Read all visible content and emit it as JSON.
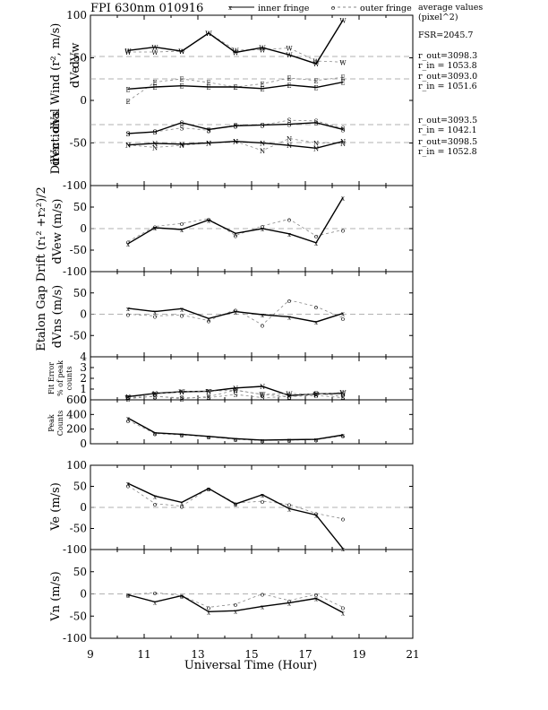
{
  "header": {
    "title": "FPI 630nm 010916",
    "legend_inner": "inner fringe",
    "legend_outer": "outer fringe",
    "legend_inner_marker": "x",
    "legend_outer_marker": "o"
  },
  "side_notes": {
    "average_title": "average values",
    "average_unit": "(pixel^2)",
    "fsr": "FSR=2045.7",
    "pairs": [
      {
        "out": "r_out=3098.3",
        "in": "r_in = 1053.8"
      },
      {
        "out": "r_out=3093.0",
        "in": "r_in = 1051.6"
      },
      {
        "out": "r_out=3093.5",
        "in": "r_in = 1042.1"
      },
      {
        "out": "r_out=3098.5",
        "in": "r_in = 1052.8"
      }
    ]
  },
  "axis_labels": {
    "directional_wind": "Directional Wind (r², m/s)",
    "dvw": "dVw",
    "dve": "dVe",
    "dvs": "dVs",
    "dvn": "dVn",
    "etalon": "Etalon Gap Drift (r₁² +r₂²)/2",
    "dvew": "dVew (m/s)",
    "dvns": "dVns (m/s)",
    "fit_error_1": "Fit Error",
    "fit_error_2": "% of peak",
    "fit_error_3": "counts",
    "peak_1": "Peak",
    "peak_2": "Counts",
    "ve": "Ve (m/s)",
    "vn": "Vn (m/s)",
    "x": "Universal Time (Hour)"
  },
  "chart_data": [
    {
      "type": "line",
      "panel": "directional_wind",
      "ylim": [
        -100,
        100
      ],
      "ytick_labels": [
        "100",
        "50",
        "0",
        "-50",
        "-100"
      ],
      "xlim": [
        9,
        21
      ],
      "xtick_labels": [
        "9",
        "11",
        "13",
        "15",
        "17",
        "19",
        "21"
      ],
      "x": [
        10.4,
        11.4,
        12.4,
        13.4,
        14.4,
        15.4,
        16.4,
        17.4,
        18.4
      ],
      "groups": [
        {
          "marker": "W",
          "inner": [
            15,
            23,
            13,
            58,
            10,
            22,
            4,
            -18,
            90
          ],
          "outer": [
            11,
            11,
            13,
            58,
            16,
            17,
            21,
            -11,
            -14
          ]
        },
        {
          "marker": "E",
          "inner": [
            -25,
            -20,
            -17,
            -20,
            -20,
            -24,
            -15,
            -21,
            -8
          ],
          "outer": [
            -55,
            -8,
            0,
            -9,
            -20,
            -12,
            2,
            -4,
            4
          ]
        },
        {
          "marker": "S",
          "inner": [
            -22,
            -18,
            5,
            -12,
            -3,
            -1,
            1,
            5,
            -12
          ],
          "outer": [
            -22,
            -18,
            -8,
            -14,
            -1,
            -1,
            11,
            9,
            -9
          ]
        },
        {
          "marker": "N",
          "inner": [
            -6,
            -2,
            -4,
            -1,
            3,
            -1,
            -7,
            -14,
            3
          ],
          "outer": [
            -6,
            -12,
            -7,
            -1,
            3,
            -20,
            10,
            -1,
            -2
          ]
        }
      ]
    },
    {
      "type": "line",
      "panel": "dVew",
      "ylim": [
        -100,
        100
      ],
      "ytick_labels": [
        "50",
        "0",
        "-50",
        "-100"
      ],
      "x": [
        10.4,
        11.4,
        12.4,
        13.4,
        14.4,
        15.4,
        16.4,
        17.4,
        18.4
      ],
      "series": [
        {
          "name": "inner fringe",
          "values": [
            -35,
            2,
            -2,
            20,
            -11,
            0,
            -12,
            -33,
            72
          ]
        },
        {
          "name": "outer fringe",
          "values": [
            -30,
            5,
            12,
            23,
            -16,
            6,
            22,
            -17,
            -3
          ]
        }
      ]
    },
    {
      "type": "line",
      "panel": "dVns",
      "ylim": [
        -100,
        100
      ],
      "ytick_labels": [
        "50",
        "0",
        "-50"
      ],
      "x": [
        10.4,
        11.4,
        12.4,
        13.4,
        14.4,
        15.4,
        16.4,
        17.4,
        18.4
      ],
      "series": [
        {
          "name": "inner fringe",
          "values": [
            14,
            6,
            13,
            -10,
            6,
            -1,
            -6,
            -18,
            2
          ]
        },
        {
          "name": "outer fringe",
          "values": [
            0,
            -4,
            -2,
            -15,
            11,
            -25,
            33,
            18,
            -9
          ]
        }
      ]
    },
    {
      "type": "line",
      "panel": "fit_error",
      "ylim": [
        0,
        4
      ],
      "ytick_labels": [
        "4",
        "3",
        "2",
        "1",
        "0"
      ],
      "x": [
        10.4,
        11.4,
        12.4,
        13.4,
        14.4,
        15.4,
        16.4,
        17.4,
        18.4
      ],
      "marker_lines": [
        {
          "marker": "N",
          "values": [
            0.3,
            0.6,
            0.75,
            0.8,
            1.1,
            1.25,
            0.4,
            0.55,
            0.6
          ]
        },
        {
          "marker": "W",
          "values": [
            0.2,
            0.55,
            0.75,
            0.8,
            0.9,
            0.5,
            0.6,
            0.5,
            0.7
          ]
        },
        {
          "marker": "E",
          "values": [
            0.1,
            0.35,
            0.1,
            0.3,
            0.9,
            0.5,
            0.3,
            0.6,
            0.3
          ]
        },
        {
          "marker": "S",
          "values": [
            0.2,
            0.3,
            0.2,
            0.2,
            0.5,
            0.2,
            0.3,
            0.4,
            0.2
          ]
        }
      ]
    },
    {
      "type": "line",
      "panel": "peak_counts",
      "ylim": [
        0,
        600
      ],
      "ytick_labels": [
        "600",
        "400",
        "200",
        "0"
      ],
      "x": [
        10.4,
        11.4,
        12.4,
        13.4,
        14.4,
        15.4,
        16.4,
        17.4,
        18.4
      ],
      "series": [
        {
          "name": "inner fringe",
          "values": [
            350,
            150,
            130,
            100,
            70,
            50,
            55,
            60,
            120
          ]
        },
        {
          "name": "outer fringe",
          "values": [
            320,
            140,
            120,
            95,
            60,
            45,
            50,
            55,
            110
          ]
        }
      ]
    },
    {
      "type": "line",
      "panel": "Ve",
      "ylim": [
        -100,
        100
      ],
      "ytick_labels": [
        "100",
        "50",
        "0",
        "-50",
        "-100"
      ],
      "x": [
        10.4,
        11.4,
        12.4,
        13.4,
        14.4,
        15.4,
        16.4,
        17.4,
        18.4
      ],
      "series": [
        {
          "name": "inner fringe",
          "values": [
            57,
            27,
            12,
            45,
            8,
            30,
            -3,
            -18,
            -122
          ]
        },
        {
          "name": "outer fringe",
          "values": [
            52,
            9,
            3,
            45,
            10,
            15,
            7,
            -14,
            -27
          ]
        }
      ]
    },
    {
      "type": "line",
      "panel": "Vn",
      "ylim": [
        -100,
        100
      ],
      "ytick_labels": [
        "50",
        "0",
        "-50",
        "-100"
      ],
      "x": [
        10.4,
        11.4,
        12.4,
        13.4,
        14.4,
        15.4,
        16.4,
        17.4,
        18.4
      ],
      "series": [
        {
          "name": "inner fringe",
          "values": [
            -2,
            -18,
            -4,
            -40,
            -38,
            -28,
            -20,
            -10,
            -42
          ]
        },
        {
          "name": "outer fringe",
          "values": [
            -2,
            3,
            -4,
            -30,
            -23,
            0,
            -15,
            -1,
            -30
          ]
        }
      ]
    }
  ]
}
